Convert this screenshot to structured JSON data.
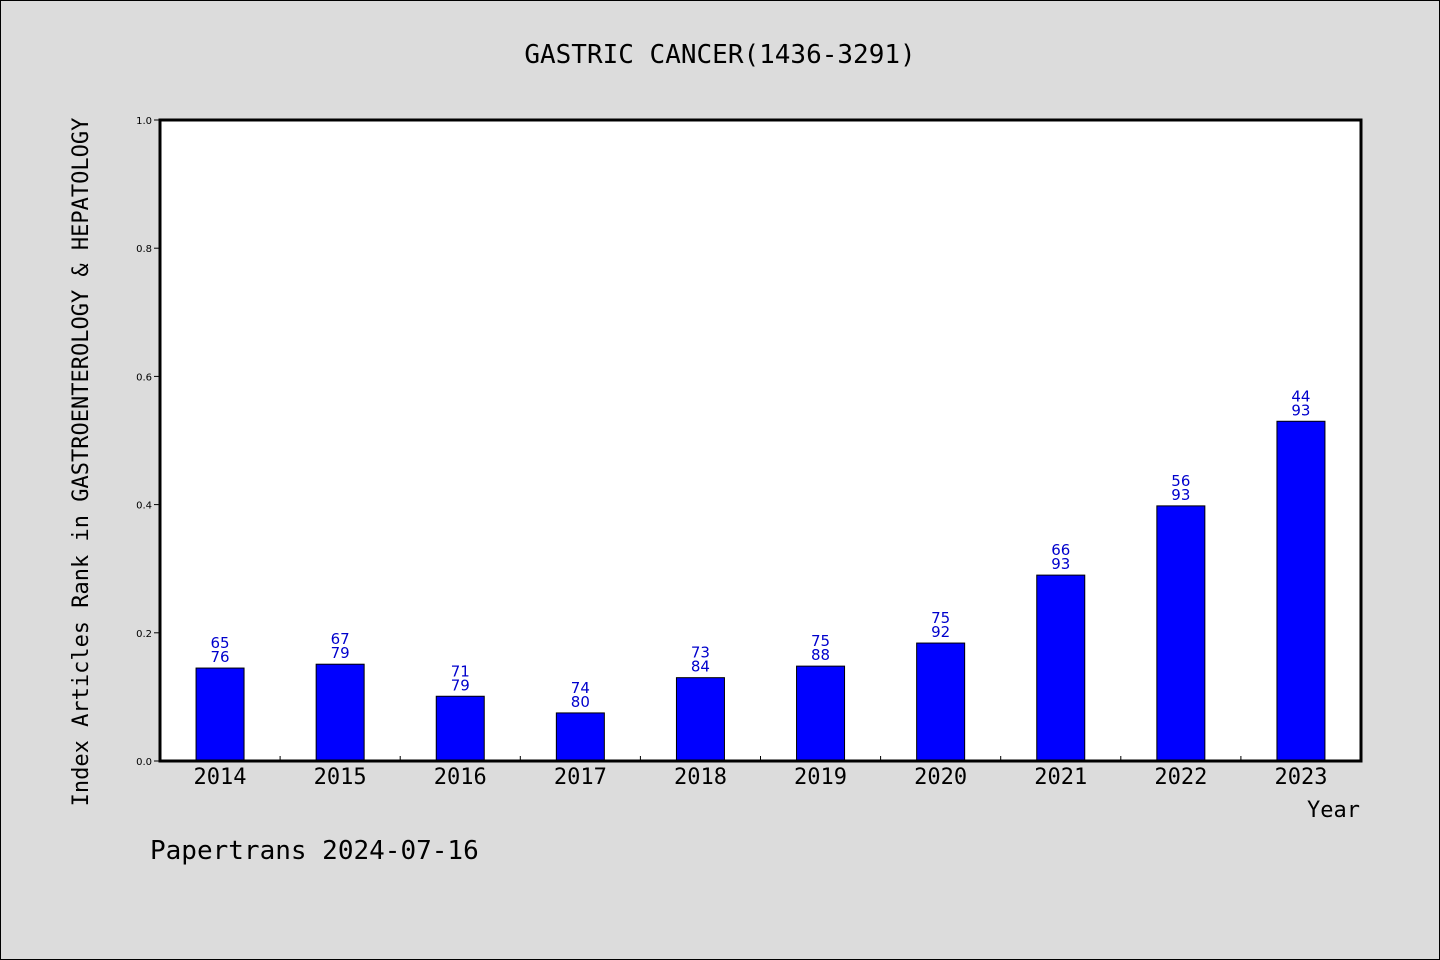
{
  "chart_data": {
    "type": "bar",
    "title": "GASTRIC CANCER(1436-3291)",
    "xlabel": "Year",
    "ylabel": "Index Articles Rank in GASTROENTEROLOGY & HEPATOLOGY",
    "ylim": [
      0,
      1.0
    ],
    "yticks": [
      "0.0",
      "0.2",
      "0.4",
      "0.6",
      "0.8",
      "1.0"
    ],
    "categories": [
      "2014",
      "2015",
      "2016",
      "2017",
      "2018",
      "2019",
      "2020",
      "2021",
      "2022",
      "2023"
    ],
    "values": [
      0.145,
      0.151,
      0.101,
      0.075,
      0.13,
      0.148,
      0.184,
      0.29,
      0.398,
      0.53
    ],
    "bar_labels": [
      {
        "top": "65",
        "bottom": "76"
      },
      {
        "top": "67",
        "bottom": "79"
      },
      {
        "top": "71",
        "bottom": "79"
      },
      {
        "top": "74",
        "bottom": "80"
      },
      {
        "top": "73",
        "bottom": "84"
      },
      {
        "top": "75",
        "bottom": "88"
      },
      {
        "top": "75",
        "bottom": "92"
      },
      {
        "top": "66",
        "bottom": "93"
      },
      {
        "top": "56",
        "bottom": "93"
      },
      {
        "top": "44",
        "bottom": "93"
      }
    ],
    "bar_color": "#0000ff",
    "label_color": "#0000cc",
    "grid": false,
    "legend": "none"
  },
  "footer": {
    "text": "Papertrans 2024-07-16"
  }
}
